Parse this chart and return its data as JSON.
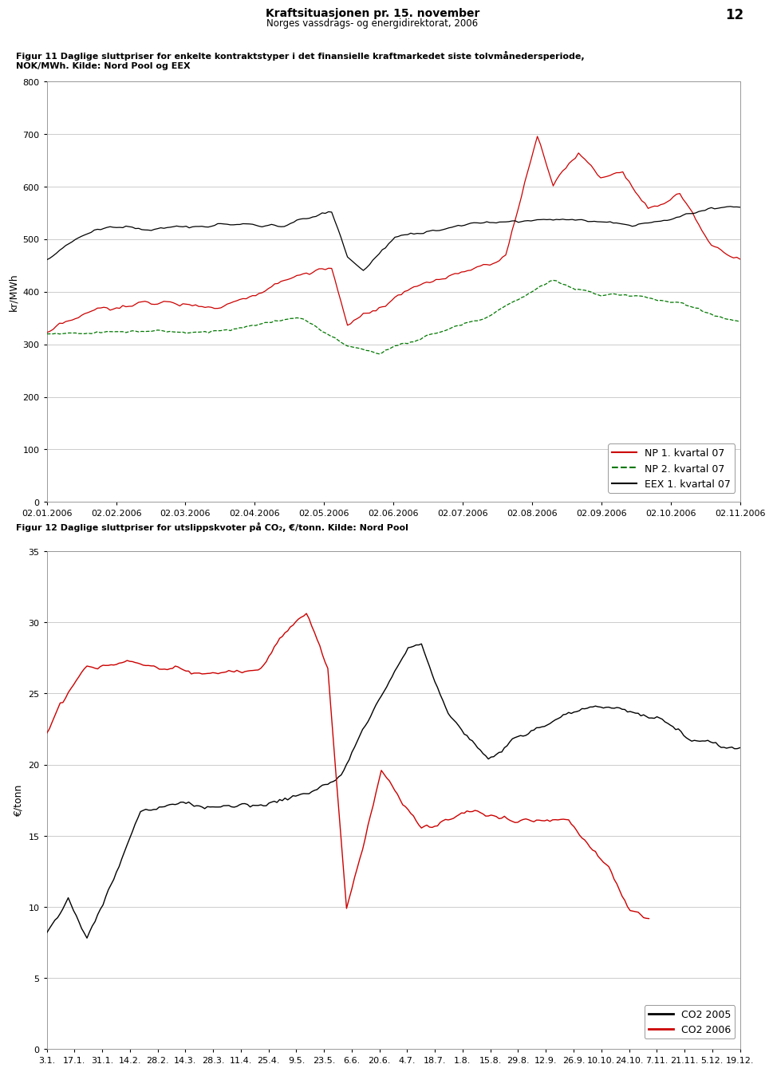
{
  "page_title": "Kraftsituasjonen pr. 15. november",
  "page_subtitle": "Norges vassdrags- og energidirektorat, 2006",
  "page_number": "12",
  "fig1_caption_bold": "Figur 11 Daglige sluttpriser for enkelte kontraktstyper i det finansielle kraftmarkedet siste tolvmånedersperiode,\nNOK/MWh. Kilde: Nord Pool og EEX",
  "fig1_ylabel": "kr/MWh",
  "fig1_ylim": [
    0,
    800
  ],
  "fig1_yticks": [
    0,
    100,
    200,
    300,
    400,
    500,
    600,
    700,
    800
  ],
  "fig1_xlabel_dates": [
    "02.01.2006",
    "02.02.2006",
    "02.03.2006",
    "02.04.2006",
    "02.05.2006",
    "02.06.2006",
    "02.07.2006",
    "02.08.2006",
    "02.09.2006",
    "02.10.2006",
    "02.11.2006"
  ],
  "fig2_caption_bold": "Figur 12 Daglige sluttpriser for utslippskvoter på CO₂, €/tonn. Kilde: Nord Pool",
  "fig2_ylabel": "€/tonn",
  "fig2_ylim": [
    0,
    35
  ],
  "fig2_yticks": [
    0,
    5,
    10,
    15,
    20,
    25,
    30,
    35
  ],
  "fig2_xlabel_dates": [
    "3.1.",
    "17.1.",
    "31.1.",
    "14.2.",
    "28.2.",
    "14.3.",
    "28.3.",
    "11.4.",
    "25.4.",
    "9.5.",
    "23.5.",
    "6.6.",
    "20.6.",
    "4.7.",
    "18.7.",
    "1.8.",
    "15.8.",
    "29.8.",
    "12.9.",
    "26.9.",
    "10.10.",
    "24.10.",
    "7.11.",
    "21.11.",
    "5.12.",
    "19.12."
  ],
  "legend1_entries": [
    "NP 1. kvartal 07",
    "NP 2. kvartal 07",
    "EEX 1. kvartal 07"
  ],
  "legend1_colors": [
    "#cc0000",
    "#007700",
    "#000000"
  ],
  "legend1_styles": [
    "solid",
    "dashed",
    "solid"
  ],
  "legend2_entries": [
    "CO2 2005",
    "CO2 2006"
  ],
  "legend2_colors": [
    "#000000",
    "#cc0000"
  ],
  "grid_color": "#cccccc"
}
